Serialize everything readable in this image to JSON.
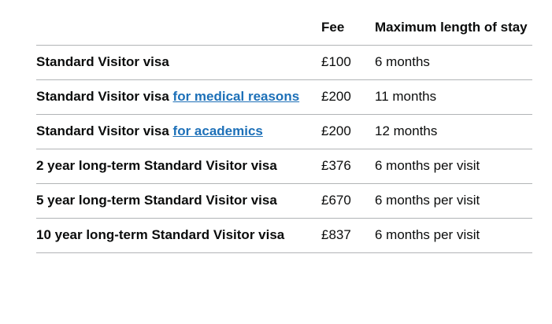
{
  "table": {
    "headers": [
      "",
      "Fee",
      "Maximum length of stay"
    ],
    "rows": [
      {
        "name": "Standard Visitor visa",
        "link": "",
        "fee": "£100",
        "stay": "6 months"
      },
      {
        "name": "Standard Visitor visa ",
        "link": "for medical reasons",
        "fee": "£200",
        "stay": "11 months"
      },
      {
        "name": "Standard Visitor visa ",
        "link": "for academics",
        "fee": "£200",
        "stay": "12 months"
      },
      {
        "name": "2 year long-term Standard Visitor visa",
        "link": "",
        "fee": "£376",
        "stay": "6 months per visit"
      },
      {
        "name": "5 year long-term Standard Visitor visa",
        "link": "",
        "fee": "£670",
        "stay": "6 months per visit"
      },
      {
        "name": "10 year long-term Standard Visitor visa",
        "link": "",
        "fee": "£837",
        "stay": "6 months per visit"
      }
    ]
  },
  "colors": {
    "link": "#1d70b8",
    "border": "#b1b4b6"
  }
}
